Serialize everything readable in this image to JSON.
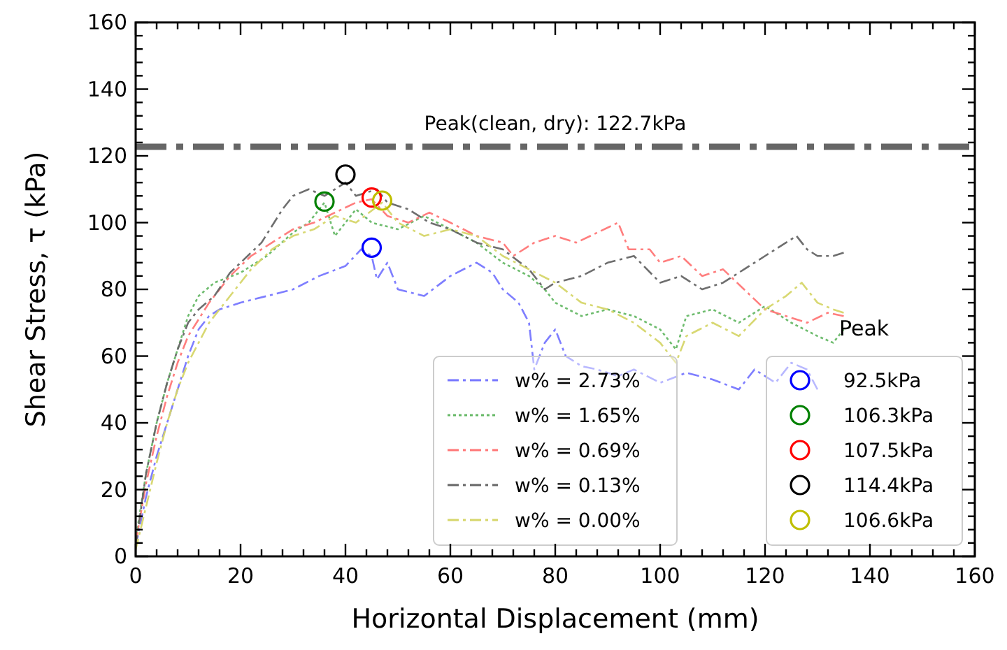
{
  "chart_data": {
    "type": "line",
    "xlabel": "Horizontal Displacement (mm)",
    "ylabel": "Shear Stress, τ (kPa)",
    "xlim": [
      0,
      160
    ],
    "ylim": [
      0,
      160
    ],
    "xticks": [
      0,
      {
        "value": 4,
        "label": null
      },
      {
        "value": 8,
        "label": null
      },
      {
        "value": 12,
        "label": null
      },
      {
        "value": 16,
        "label": null
      },
      20,
      {
        "value": 24,
        "label": null
      },
      {
        "value": 28,
        "label": null
      },
      {
        "value": 32,
        "label": null
      },
      {
        "value": 36,
        "label": null
      },
      40,
      {
        "value": 44,
        "label": null
      },
      {
        "value": 48,
        "label": null
      },
      {
        "value": 52,
        "label": null
      },
      {
        "value": 56,
        "label": null
      },
      60,
      {
        "value": 64,
        "label": null
      },
      {
        "value": 68,
        "label": null
      },
      {
        "value": 72,
        "label": null
      },
      {
        "value": 76,
        "label": null
      },
      80,
      {
        "value": 84,
        "label": null
      },
      {
        "value": 88,
        "label": null
      },
      {
        "value": 92,
        "label": null
      },
      {
        "value": 96,
        "label": null
      },
      100,
      {
        "value": 104,
        "label": null
      },
      {
        "value": 108,
        "label": null
      },
      {
        "value": 112,
        "label": null
      },
      {
        "value": 116,
        "label": null
      },
      120,
      {
        "value": 124,
        "label": null
      },
      {
        "value": 128,
        "label": null
      },
      {
        "value": 132,
        "label": null
      },
      {
        "value": 136,
        "label": null
      },
      140,
      {
        "value": 144,
        "label": null
      },
      {
        "value": 148,
        "label": null
      },
      {
        "value": 152,
        "label": null
      },
      {
        "value": 156,
        "label": null
      },
      160
    ],
    "yticks": [
      0,
      {
        "value": 4,
        "label": null
      },
      {
        "value": 8,
        "label": null
      },
      {
        "value": 12,
        "label": null
      },
      {
        "value": 16,
        "label": null
      },
      20,
      {
        "value": 24,
        "label": null
      },
      {
        "value": 28,
        "label": null
      },
      {
        "value": 32,
        "label": null
      },
      {
        "value": 36,
        "label": null
      },
      40,
      {
        "value": 44,
        "label": null
      },
      {
        "value": 48,
        "label": null
      },
      {
        "value": 52,
        "label": null
      },
      {
        "value": 56,
        "label": null
      },
      60,
      {
        "value": 64,
        "label": null
      },
      {
        "value": 68,
        "label": null
      },
      {
        "value": 72,
        "label": null
      },
      {
        "value": 76,
        "label": null
      },
      80,
      {
        "value": 84,
        "label": null
      },
      {
        "value": 88,
        "label": null
      },
      {
        "value": 92,
        "label": null
      },
      {
        "value": 96,
        "label": null
      },
      100,
      {
        "value": 104,
        "label": null
      },
      {
        "value": 108,
        "label": null
      },
      {
        "value": 112,
        "label": null
      },
      {
        "value": 116,
        "label": null
      },
      120,
      {
        "value": 124,
        "label": null
      },
      {
        "value": 128,
        "label": null
      },
      {
        "value": 132,
        "label": null
      },
      {
        "value": 136,
        "label": null
      },
      140,
      {
        "value": 144,
        "label": null
      },
      {
        "value": 148,
        "label": null
      },
      {
        "value": 152,
        "label": null
      },
      {
        "value": 156,
        "label": null
      },
      160
    ],
    "grid": false,
    "legend": "bottom right",
    "marker": "none",
    "ref_lines": [
      {
        "axis": "y",
        "value": 122.7,
        "label": "Peak(clean, dry): 122.7kPa",
        "color": "#666666",
        "line_style": "dashed"
      }
    ],
    "annotations": [
      "Peak"
    ],
    "series": [
      {
        "name": "w% = 2.73%",
        "color": "#7777ff",
        "line_style": "dashed",
        "x": [
          0,
          2,
          4,
          6,
          8,
          10,
          12,
          14,
          16,
          20,
          25,
          30,
          35,
          40,
          43,
          45,
          46,
          48,
          50,
          55,
          60,
          65,
          68,
          70,
          73,
          75,
          76,
          78,
          80,
          82,
          85,
          88,
          92,
          95,
          100,
          105,
          110,
          115,
          118,
          122,
          125,
          128,
          130
        ],
        "values": [
          3,
          18,
          30,
          40,
          50,
          60,
          68,
          72,
          74,
          76,
          78,
          80,
          84,
          87,
          92,
          90,
          83,
          88,
          80,
          78,
          84,
          88,
          85,
          80,
          76,
          70,
          56,
          64,
          68,
          60,
          57,
          56,
          54,
          56,
          52,
          55,
          53,
          50,
          56,
          52,
          58,
          56,
          50
        ]
      },
      {
        "name": "w% = 1.65%",
        "color": "#66b866",
        "line_style": "dotted",
        "x": [
          0,
          2,
          4,
          6,
          8,
          10,
          12,
          15,
          20,
          25,
          30,
          33,
          36,
          38,
          40,
          42,
          45,
          50,
          55,
          60,
          65,
          70,
          75,
          78,
          80,
          85,
          90,
          95,
          100,
          103,
          105,
          110,
          115,
          120,
          125,
          130,
          133,
          135
        ],
        "values": [
          5,
          25,
          40,
          52,
          62,
          72,
          78,
          82,
          85,
          90,
          97,
          100,
          106,
          96,
          100,
          104,
          100,
          98,
          102,
          98,
          94,
          88,
          84,
          80,
          76,
          72,
          74,
          72,
          68,
          62,
          72,
          74,
          70,
          75,
          70,
          66,
          64,
          68
        ]
      },
      {
        "name": "w% = 0.69%",
        "color": "#ff7777",
        "line_style": "dashed",
        "x": [
          0,
          2,
          4,
          6,
          8,
          10,
          14,
          18,
          22,
          26,
          30,
          34,
          38,
          42,
          45,
          48,
          52,
          56,
          60,
          65,
          70,
          72,
          76,
          80,
          84,
          88,
          92,
          94,
          98,
          100,
          104,
          108,
          112,
          116,
          120,
          124,
          128,
          132,
          135
        ],
        "values": [
          4,
          22,
          36,
          48,
          58,
          66,
          76,
          84,
          90,
          94,
          98,
          100,
          103,
          106,
          107,
          102,
          100,
          103,
          100,
          96,
          94,
          90,
          94,
          96,
          94,
          97,
          100,
          92,
          92,
          88,
          90,
          84,
          86,
          80,
          74,
          72,
          70,
          73,
          72
        ]
      },
      {
        "name": "w% = 0.13%",
        "color": "#666666",
        "line_style": "dashed",
        "x": [
          0,
          2,
          4,
          6,
          8,
          10,
          12,
          15,
          18,
          20,
          24,
          28,
          30,
          33,
          36,
          40,
          42,
          46,
          48,
          52,
          56,
          60,
          65,
          70,
          75,
          78,
          80,
          85,
          90,
          95,
          100,
          104,
          108,
          112,
          116,
          120,
          124,
          126,
          128,
          130,
          133,
          135
        ],
        "values": [
          3,
          25,
          40,
          52,
          62,
          70,
          74,
          78,
          85,
          88,
          94,
          104,
          108,
          110,
          108,
          112,
          108,
          110,
          106,
          104,
          100,
          98,
          94,
          92,
          86,
          80,
          82,
          84,
          88,
          90,
          82,
          84,
          80,
          82,
          86,
          90,
          94,
          96,
          92,
          90,
          90,
          91
        ]
      },
      {
        "name": "w% = 0.00%",
        "color": "#d6d66a",
        "line_style": "dashed",
        "x": [
          0,
          2,
          4,
          6,
          8,
          10,
          14,
          18,
          22,
          26,
          30,
          34,
          38,
          42,
          47,
          50,
          55,
          60,
          65,
          70,
          75,
          80,
          85,
          90,
          95,
          100,
          103,
          105,
          110,
          115,
          120,
          124,
          127,
          130,
          133,
          135
        ],
        "values": [
          2,
          15,
          28,
          40,
          50,
          58,
          70,
          78,
          86,
          92,
          96,
          98,
          102,
          100,
          106,
          100,
          96,
          98,
          96,
          90,
          86,
          82,
          76,
          74,
          70,
          64,
          58,
          66,
          70,
          66,
          74,
          78,
          82,
          76,
          74,
          73
        ]
      },
      {
        "name": "92.5kPa",
        "type": "scatter",
        "marker": "circle",
        "color": "#0000ff",
        "x": [
          45
        ],
        "values": [
          92.5
        ]
      },
      {
        "name": "106.3kPa",
        "type": "scatter",
        "marker": "circle",
        "color": "#008000",
        "x": [
          36
        ],
        "values": [
          106.3
        ]
      },
      {
        "name": "107.5kPa",
        "type": "scatter",
        "marker": "circle",
        "color": "#ff0000",
        "x": [
          45
        ],
        "values": [
          107.5
        ]
      },
      {
        "name": "114.4kPa",
        "type": "scatter",
        "marker": "circle",
        "color": "#000000",
        "x": [
          40
        ],
        "values": [
          114.4
        ]
      },
      {
        "name": "106.6kPa",
        "type": "scatter",
        "marker": "circle",
        "color": "#bfbf00",
        "x": [
          47
        ],
        "values": [
          106.6
        ]
      }
    ]
  }
}
